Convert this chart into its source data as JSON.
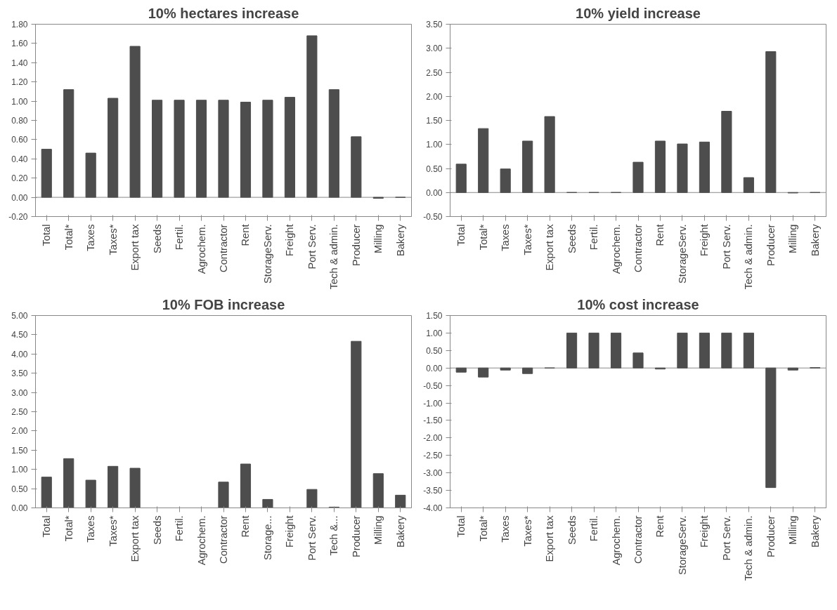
{
  "chart_data": [
    {
      "type": "bar",
      "title": "10% hectares increase",
      "color": "#4d4d4d",
      "categories": [
        "Total",
        "Total*",
        "Taxes",
        "Taxes*",
        "Export tax",
        "Seeds",
        "Fertil.",
        "Agrochem.",
        "Contractor",
        "Rent",
        "StorageServ.",
        "Freight",
        "Port Serv.",
        "Tech & admin.",
        "Producer",
        "Milling",
        "Bakery"
      ],
      "values": [
        0.5,
        1.12,
        0.46,
        1.03,
        1.57,
        1.01,
        1.01,
        1.01,
        1.01,
        0.99,
        1.01,
        1.04,
        1.68,
        1.12,
        0.63,
        -0.01,
        0
      ],
      "ylim": [
        -0.2,
        1.8
      ],
      "yticks": [
        {
          "value": -0.2,
          "label": "-0.20"
        },
        {
          "value": 0,
          "label": "0.00"
        },
        {
          "value": 0.2,
          "label": "0.20"
        },
        {
          "value": 0.4,
          "label": "0.40"
        },
        {
          "value": 0.6,
          "label": "0.60"
        },
        {
          "value": 0.8,
          "label": "0.80"
        },
        {
          "value": 1.0,
          "label": "1.00"
        },
        {
          "value": 1.2,
          "label": "1.20"
        },
        {
          "value": 1.4,
          "label": "1.40"
        },
        {
          "value": 1.6,
          "label": "1.60"
        },
        {
          "value": 1.8,
          "label": "1.80"
        }
      ]
    },
    {
      "type": "bar",
      "title": "10% yield increase",
      "color": "#4d4d4d",
      "categories": [
        "Total",
        "Total*",
        "Taxes",
        "Taxes*",
        "Export tax",
        "Seeds",
        "Fertil.",
        "Agrochem.",
        "Contractor",
        "Rent",
        "StorageServ.",
        "Freight",
        "Port Serv.",
        "Tech & admin.",
        "Producer",
        "Milling",
        "Bakery"
      ],
      "values": [
        0.59,
        1.33,
        0.49,
        1.07,
        1.58,
        0,
        0,
        0,
        0.63,
        1.07,
        1.01,
        1.05,
        1.69,
        0.31,
        2.93,
        -0.01,
        0
      ],
      "ylim": [
        -0.5,
        3.5
      ],
      "yticks": [
        {
          "value": -0.5,
          "label": "-0.50"
        },
        {
          "value": 0,
          "label": "0.00"
        },
        {
          "value": 0.5,
          "label": "0.50"
        },
        {
          "value": 1.0,
          "label": "1.00"
        },
        {
          "value": 1.5,
          "label": "1.50"
        },
        {
          "value": 2.0,
          "label": "2.00"
        },
        {
          "value": 2.5,
          "label": "2.50"
        },
        {
          "value": 3.0,
          "label": "3.00"
        },
        {
          "value": 3.5,
          "label": "3.50"
        }
      ]
    },
    {
      "type": "bar",
      "title": "10% FOB increase",
      "color": "#4d4d4d",
      "categories": [
        "Total",
        "Total*",
        "Taxes",
        "Taxes*",
        "Export tax",
        "Seeds",
        "Fertil.",
        "Agrochem.",
        "Contractor",
        "Rent",
        "Storage...",
        "Freight",
        "Port Serv.",
        "Tech &...",
        "Producer",
        "Milling",
        "Bakery"
      ],
      "values": [
        0.8,
        1.28,
        0.72,
        1.08,
        1.03,
        0,
        0,
        0,
        0.67,
        1.14,
        0.22,
        0,
        0.48,
        0.02,
        4.33,
        0.89,
        0.33
      ],
      "ylim": [
        0,
        5
      ],
      "yticks": [
        {
          "value": 0,
          "label": "0.00"
        },
        {
          "value": 0.5,
          "label": "0.50"
        },
        {
          "value": 1.0,
          "label": "1.00"
        },
        {
          "value": 1.5,
          "label": "1.50"
        },
        {
          "value": 2.0,
          "label": "2.00"
        },
        {
          "value": 2.5,
          "label": "2.50"
        },
        {
          "value": 3.0,
          "label": "3.00"
        },
        {
          "value": 3.5,
          "label": "3.50"
        },
        {
          "value": 4.0,
          "label": "4.00"
        },
        {
          "value": 4.5,
          "label": "4.50"
        },
        {
          "value": 5.0,
          "label": "5.00"
        }
      ]
    },
    {
      "type": "bar",
      "title": "10% cost increase",
      "color": "#4d4d4d",
      "categories": [
        "Total",
        "Total*",
        "Taxes",
        "Taxes*",
        "Export tax",
        "Seeds",
        "Fertil.",
        "Agrochem.",
        "Contractor",
        "Rent",
        "StorageServ.",
        "Freight",
        "Port Serv.",
        "Tech & admin.",
        "Producer",
        "Milling",
        "Bakery"
      ],
      "values": [
        -0.12,
        -0.26,
        -0.06,
        -0.16,
        0,
        1.0,
        1.0,
        1.0,
        0.43,
        -0.03,
        1.0,
        1.0,
        1.0,
        1.0,
        -3.42,
        -0.06,
        0.01
      ],
      "ylim": [
        -4.0,
        1.5
      ],
      "yticks": [
        {
          "value": -4.0,
          "label": "-4.00"
        },
        {
          "value": -3.5,
          "label": "-3.50"
        },
        {
          "value": -3.0,
          "label": "-3.00"
        },
        {
          "value": -2.5,
          "label": "-2.50"
        },
        {
          "value": -2.0,
          "label": "-2.00"
        },
        {
          "value": -1.5,
          "label": "-1.50"
        },
        {
          "value": -1.0,
          "label": "-1.00"
        },
        {
          "value": -0.5,
          "label": "-0.50"
        },
        {
          "value": 0,
          "label": "0.00"
        },
        {
          "value": 0.5,
          "label": "0.50"
        },
        {
          "value": 1.0,
          "label": "1.00"
        },
        {
          "value": 1.5,
          "label": "1.50"
        }
      ]
    }
  ]
}
